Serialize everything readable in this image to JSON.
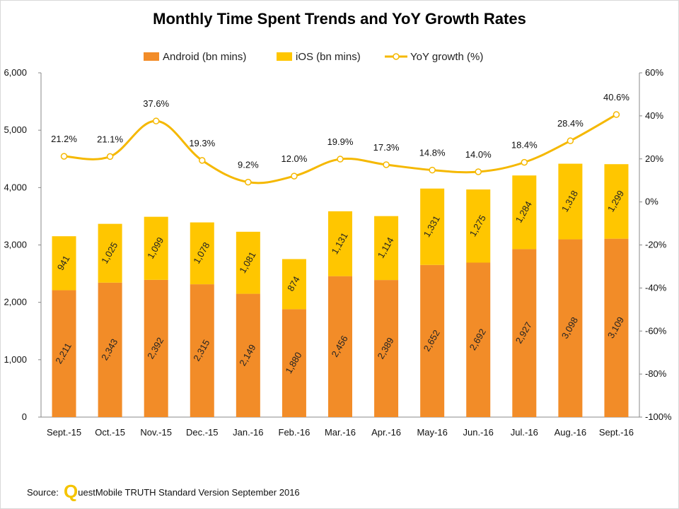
{
  "chart_data": {
    "type": "bar",
    "title": "Monthly Time Spent Trends and YoY Growth Rates",
    "categories": [
      "Sept.-15",
      "Oct.-15",
      "Nov.-15",
      "Dec.-15",
      "Jan.-16",
      "Feb.-16",
      "Mar.-16",
      "Apr.-16",
      "May-16",
      "Jun.-16",
      "Jul.-16",
      "Aug.-16",
      "Sept.-16"
    ],
    "series": [
      {
        "name": "Android (bn mins)",
        "type": "bar",
        "stacked": true,
        "color": "#f28c28",
        "values": [
          2211,
          2343,
          2392,
          2315,
          2149,
          1880,
          2456,
          2389,
          2652,
          2692,
          2927,
          3098,
          3109
        ],
        "labels": [
          "2,211",
          "2,343",
          "2,392",
          "2,315",
          "2,149",
          "1,880",
          "2,456",
          "2,389",
          "2,652",
          "2,692",
          "2,927",
          "3,098",
          "3,109"
        ]
      },
      {
        "name": "iOS (bn mins)",
        "type": "bar",
        "stacked": true,
        "color": "#ffc600",
        "values": [
          941,
          1025,
          1099,
          1078,
          1081,
          874,
          1131,
          1114,
          1331,
          1275,
          1284,
          1318,
          1299
        ],
        "labels": [
          "941",
          "1,025",
          "1,099",
          "1,078",
          "1,081",
          "874",
          "1,131",
          "1,114",
          "1,331",
          "1,275",
          "1,284",
          "1,318",
          "1,299"
        ]
      },
      {
        "name": "YoY growth (%)",
        "type": "line",
        "axis": "right",
        "color": "#f5b800",
        "values": [
          21.2,
          21.1,
          37.6,
          19.3,
          9.2,
          12.0,
          19.9,
          17.3,
          14.8,
          14.0,
          18.4,
          28.4,
          40.6
        ],
        "labels": [
          "21.2%",
          "21.1%",
          "37.6%",
          "19.3%",
          "9.2%",
          "12.0%",
          "19.9%",
          "17.3%",
          "14.8%",
          "14.0%",
          "18.4%",
          "28.4%",
          "40.6%"
        ]
      }
    ],
    "y_left": {
      "min": 0,
      "max": 6000,
      "step": 1000,
      "tick_labels": [
        "0",
        "1,000",
        "2,000",
        "3,000",
        "4,000",
        "5,000",
        "6,000"
      ]
    },
    "y_right": {
      "min": -100,
      "max": 60,
      "step": 20,
      "tick_labels": [
        "-100%",
        "-80%",
        "-60%",
        "-40%",
        "-20%",
        "0%",
        "20%",
        "40%",
        "60%"
      ]
    },
    "legend_position": "top",
    "grid": false
  },
  "source": {
    "prefix": "Source:",
    "logo_letter": "Q",
    "text": "uestMobile TRUTH Standard Version September 2016"
  }
}
